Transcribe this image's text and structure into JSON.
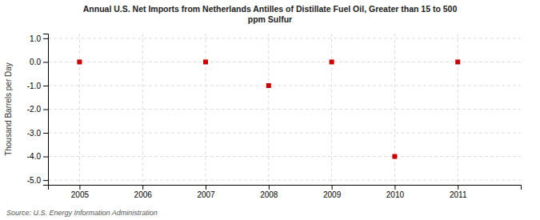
{
  "chart_data": {
    "type": "scatter",
    "title": "Annual U.S. Net Imports from Netherlands Antilles of Distillate Fuel Oil, Greater than 15 to 500\nppm Sulfur",
    "y_label": "Thousand Barrels per Day",
    "source": "Source: U.S. Energy Information Administration",
    "x": [
      2005,
      2007,
      2008,
      2009,
      2010,
      2011
    ],
    "values": [
      0.0,
      0.0,
      -1.0,
      0.0,
      -4.0,
      0.0
    ],
    "color": "#CC0000",
    "marker": "square",
    "xlim": [
      2004.5,
      2012.0
    ],
    "ylim": [
      -5.2,
      1.2
    ],
    "xticks": [
      2005,
      2006,
      2007,
      2008,
      2009,
      2010,
      2011
    ],
    "yticks": [
      {
        "value": 1.0,
        "label": "1.0"
      },
      {
        "value": 0.0,
        "label": "0.0"
      },
      {
        "value": -1.0,
        "label": "-1.0"
      },
      {
        "value": -2.0,
        "label": "-2.0"
      },
      {
        "value": -3.0,
        "label": "-3.0"
      },
      {
        "value": -4.0,
        "label": "-4.0"
      },
      {
        "value": -5.0,
        "label": "-5.0"
      }
    ],
    "grid": true
  }
}
